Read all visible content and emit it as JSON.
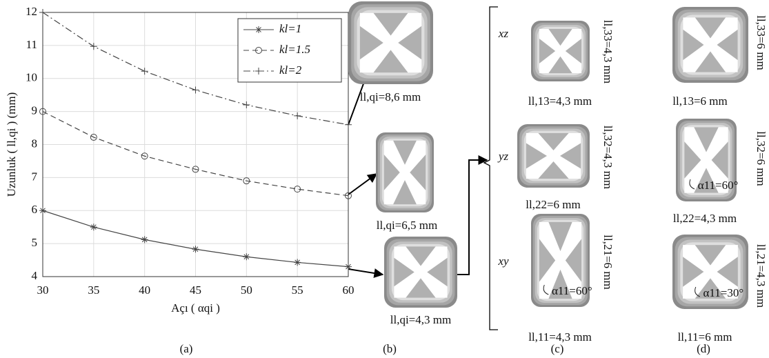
{
  "chart_data": {
    "type": "line",
    "x_label": "Açı ( αqi )",
    "y_label": "Uzunluk ( ll,qi ) (mm)",
    "x": [
      30,
      35,
      40,
      45,
      50,
      55,
      60
    ],
    "series": [
      {
        "name": "kl=1",
        "color": "#444444",
        "values": [
          6,
          5.5,
          5.12,
          4.83,
          4.6,
          4.43,
          4.3
        ]
      },
      {
        "name": "kl=1.5",
        "color": "#444444",
        "values": [
          9,
          8.22,
          7.65,
          7.25,
          6.9,
          6.65,
          6.45
        ]
      },
      {
        "name": "kl=2",
        "color": "#444444",
        "values": [
          12,
          10.97,
          10.22,
          9.65,
          9.2,
          8.87,
          8.6
        ]
      }
    ],
    "xlim": [
      30,
      60
    ],
    "xticks": [
      30,
      35,
      40,
      45,
      50,
      55,
      60
    ],
    "ylim": [
      4,
      12
    ],
    "yticks": [
      4,
      5,
      6,
      7,
      8,
      9,
      10,
      11,
      12
    ],
    "grid": true,
    "legend": "upper right"
  },
  "panels": {
    "labels": [
      "(a)",
      "(b)",
      "(c)",
      "(d)"
    ],
    "b": [
      "ll,qi=8,6 mm",
      "ll,qi=6,5 mm",
      "ll,qi=4,3 mm"
    ],
    "planes": [
      "xz",
      "yz",
      "xy"
    ],
    "c": [
      {
        "bottom": "ll,13=4,3 mm",
        "side": "ll,33=4,3 mm"
      },
      {
        "bottom": "ll,22=6 mm",
        "side": "ll,32=4,3 mm"
      },
      {
        "bottom": "ll,11=4,3 mm",
        "side": "ll,21=6 mm",
        "angle": "α11=60°"
      }
    ],
    "d": [
      {
        "bottom": "ll,13=6 mm",
        "side": "ll,33=6 mm"
      },
      {
        "bottom": "ll,22=4,3 mm",
        "side": "ll,32=6 mm",
        "angle": "α11=60°"
      },
      {
        "bottom": "ll,11=6 mm",
        "side": "ll,21=4,3 mm",
        "angle": "α11=30°"
      }
    ]
  }
}
